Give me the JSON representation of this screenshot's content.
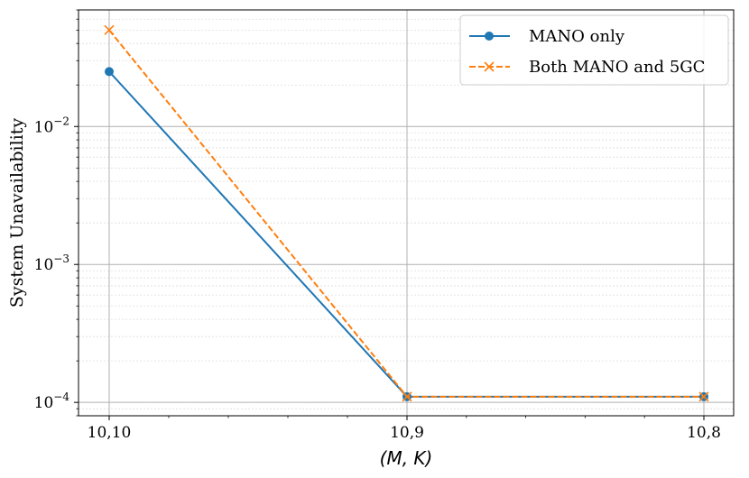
{
  "chart_data": {
    "type": "line",
    "title": "",
    "xlabel": "(M, K)",
    "ylabel": "System Unavailability",
    "yscale": "log",
    "ylim": [
      8e-05,
      0.07
    ],
    "categories": [
      "10,10",
      "10,9",
      "10,8"
    ],
    "y_ticks": [
      {
        "value": 0.0001,
        "base": "10",
        "exp": "−4"
      },
      {
        "value": 0.001,
        "base": "10",
        "exp": "−3"
      },
      {
        "value": 0.01,
        "base": "10",
        "exp": "−2"
      }
    ],
    "grid": true,
    "legend_position": "top-right",
    "series": [
      {
        "name": "MANO only",
        "values": [
          0.025,
          0.00011,
          0.00011
        ],
        "color": "#1f77b4",
        "marker": "circle",
        "linestyle": "solid"
      },
      {
        "name": "Both MANO and 5GC",
        "values": [
          0.05,
          0.00011,
          0.00011
        ],
        "color": "#ff7f0e",
        "marker": "x",
        "linestyle": "dashed"
      }
    ]
  }
}
